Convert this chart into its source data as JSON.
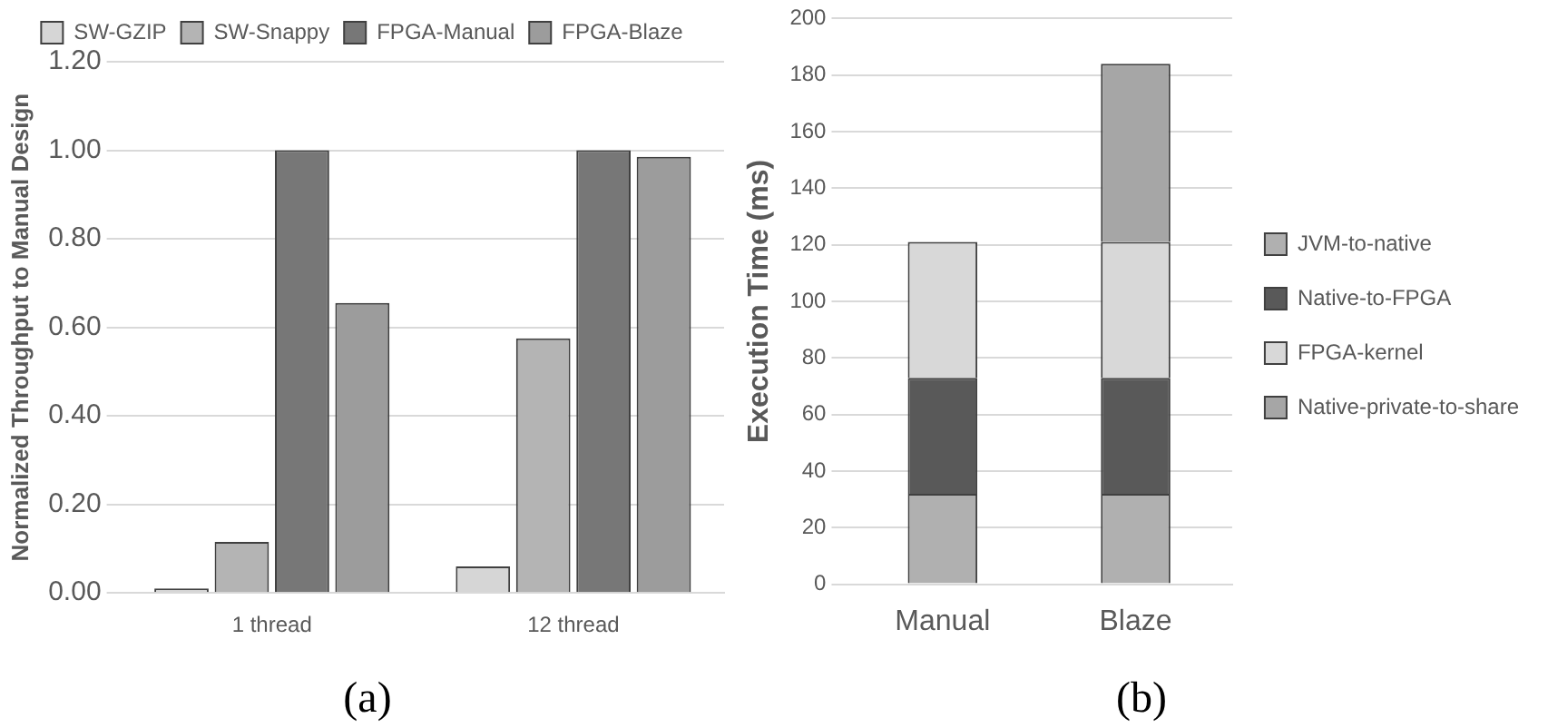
{
  "chart_data": [
    {
      "type": "bar",
      "ylabel": "Normalized Throughput to Manual Design",
      "categories": [
        "1 thread",
        "12 thread"
      ],
      "series": [
        {
          "name": "SW-GZIP",
          "color": "#d6d6d6",
          "values": [
            0.01,
            0.06
          ]
        },
        {
          "name": "SW-Snappy",
          "color": "#b4b4b4",
          "values": [
            0.115,
            0.575
          ]
        },
        {
          "name": "FPGA-Manual",
          "color": "#777777",
          "values": [
            1.0,
            1.0
          ]
        },
        {
          "name": "FPGA-Blaze",
          "color": "#9c9c9c",
          "values": [
            0.655,
            0.985
          ]
        }
      ],
      "ylim": [
        0,
        1.2
      ],
      "yticks": [
        {
          "value": 0,
          "label": "0.00"
        },
        {
          "value": 0.2,
          "label": "0.20"
        },
        {
          "value": 0.4,
          "label": "0.40"
        },
        {
          "value": 0.6,
          "label": "0.60"
        },
        {
          "value": 0.8,
          "label": "0.80"
        },
        {
          "value": 1,
          "label": "1.00"
        },
        {
          "value": 1.2,
          "label": "1.20"
        }
      ],
      "grid": "y",
      "legend": "top",
      "annotations": [
        "(a)"
      ]
    },
    {
      "type": "bar",
      "stacked": true,
      "ylabel": "Execution Time (ms)",
      "categories": [
        "Manual",
        "Blaze"
      ],
      "series": [
        {
          "name": "JVM-to-native",
          "color": "#b0b0b0",
          "values": [
            32,
            32
          ]
        },
        {
          "name": "Native-to-FPGA",
          "color": "#595959",
          "values": [
            41,
            41
          ]
        },
        {
          "name": "FPGA-kernel",
          "color": "#d8d8d8",
          "values": [
            48,
            48
          ]
        },
        {
          "name": "Native-private-to-share",
          "color": "#a6a6a6",
          "values": [
            null,
            63
          ]
        }
      ],
      "ylim": [
        0,
        200
      ],
      "yticks": [
        0,
        20,
        40,
        60,
        80,
        100,
        120,
        140,
        160,
        180,
        200
      ],
      "grid": "y",
      "legend": "right",
      "annotations": [
        "(b)"
      ]
    }
  ]
}
